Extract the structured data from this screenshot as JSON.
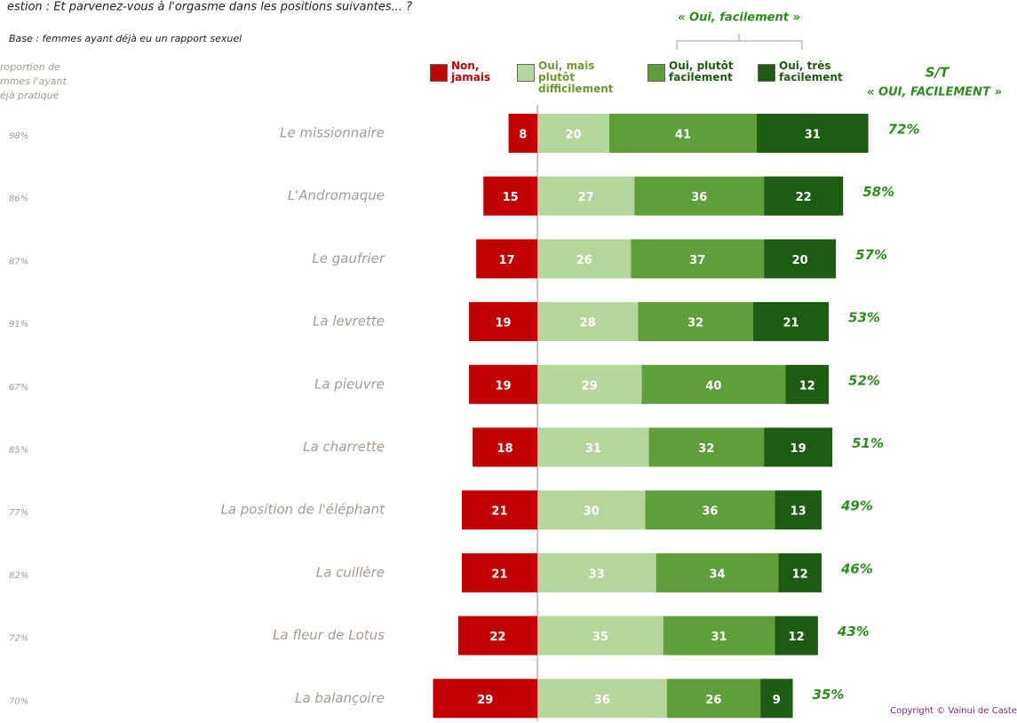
{
  "chart_data": {
    "type": "diverging_bar",
    "title": "estion : Et parvenez-vous à l'orgasme dans les positions suivantes... ?",
    "subtitle": "Base :  femmes ayant déjà eu un rapport sexuel",
    "left_header": [
      "roportion de",
      "mmes l'ayant",
      "éjà pratiqué"
    ],
    "group_label": "« Oui, facilement »",
    "total_header": [
      "S/T",
      "« OUI, FACILEMENT »"
    ],
    "copyright": "Copyright © Vaïnui de Caste",
    "categories": [
      "Le missionnaire",
      "L'Andromaque",
      "Le gaufrier",
      "La levrette",
      "La pieuvre",
      "La charrette",
      "La position de l'éléphant",
      "La cuillère",
      "La fleur de Lotus",
      "La balançoire"
    ],
    "practiced": {
      "values": [
        98,
        86,
        87,
        91,
        67,
        85,
        77,
        82,
        72,
        70
      ],
      "value_labels": [
        "98%",
        "86%",
        "87%",
        "91%",
        "67%",
        "85%",
        "77%",
        "82%",
        "72%",
        "70%"
      ]
    },
    "series": [
      {
        "name": "Non, jamais",
        "color": "#c00000",
        "side": "negative",
        "values": [
          8,
          15,
          17,
          19,
          19,
          18,
          21,
          21,
          22,
          29
        ]
      },
      {
        "name": "Oui, mais plutôt difficilement",
        "color": "#b5d69a",
        "values": [
          20,
          27,
          26,
          28,
          29,
          31,
          30,
          33,
          35,
          36
        ]
      },
      {
        "name": "Oui, plutôt facilement",
        "color": "#5f9e3a",
        "values": [
          41,
          36,
          37,
          32,
          40,
          32,
          36,
          34,
          31,
          26
        ]
      },
      {
        "name": "Oui, très facilement",
        "color": "#1e5c12",
        "values": [
          31,
          22,
          20,
          21,
          12,
          19,
          13,
          12,
          12,
          9
        ]
      }
    ],
    "totals": {
      "values": [
        72,
        58,
        57,
        53,
        52,
        51,
        49,
        46,
        43,
        35
      ],
      "value_labels": [
        "72%",
        "58%",
        "57%",
        "53%",
        "52%",
        "51%",
        "49%",
        "46%",
        "43%",
        "35%"
      ]
    }
  }
}
